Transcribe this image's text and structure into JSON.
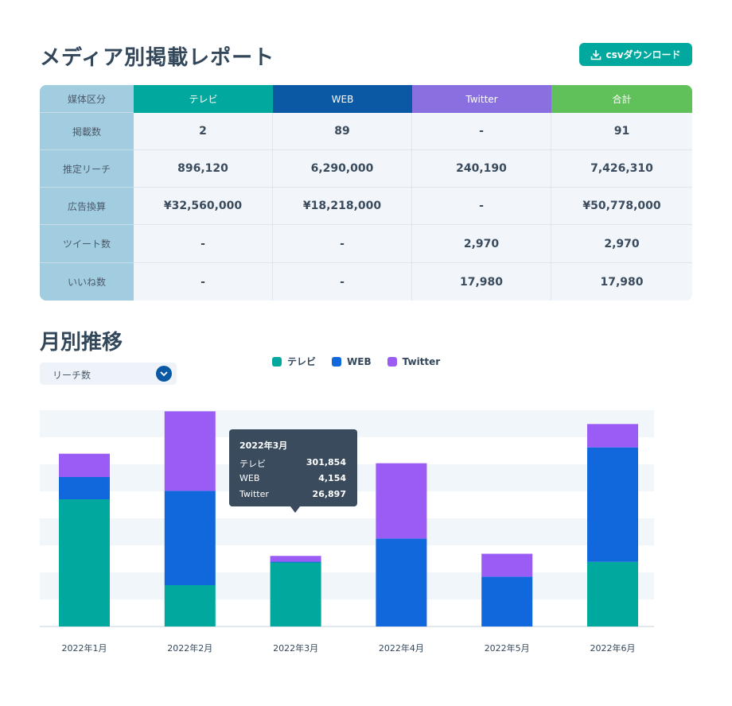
{
  "header": {
    "title": "メディア別掲載レポート",
    "csv_label": "csvダウンロード"
  },
  "table": {
    "corner": "媒体区分",
    "columns": [
      {
        "label": "テレビ",
        "color": "#00a89d"
      },
      {
        "label": "WEB",
        "color": "#0b59a5"
      },
      {
        "label": "Twitter",
        "color": "#8a6fe0"
      },
      {
        "label": "合計",
        "color": "#60c05a"
      }
    ],
    "rows": [
      {
        "label": "掲載数",
        "values": [
          "2",
          "89",
          "-",
          "91"
        ]
      },
      {
        "label": "推定リーチ",
        "values": [
          "896,120",
          "6,290,000",
          "240,190",
          "7,426,310"
        ]
      },
      {
        "label": "広告換算",
        "values": [
          "¥32,560,000",
          "¥18,218,000",
          "-",
          "¥50,778,000"
        ]
      },
      {
        "label": "ツイート数",
        "values": [
          "-",
          "-",
          "2,970",
          "2,970"
        ]
      },
      {
        "label": "いいね数",
        "values": [
          "-",
          "-",
          "17,980",
          "17,980"
        ]
      }
    ]
  },
  "trend": {
    "title": "月別推移",
    "dropdown_value": "リーチ数"
  },
  "legend": [
    {
      "label": "テレビ",
      "color": "#00a89d"
    },
    {
      "label": "WEB",
      "color": "#1167dc"
    },
    {
      "label": "Twitter",
      "color": "#9b5cf5"
    }
  ],
  "tooltip": {
    "title": "2022年3月",
    "rows": [
      {
        "label": "テレビ",
        "value": "301,854"
      },
      {
        "label": "WEB",
        "value": "4,154"
      },
      {
        "label": "Twitter",
        "value": "26,897"
      }
    ]
  },
  "chart_data": {
    "type": "bar",
    "stacked": true,
    "categories": [
      "2022年1月",
      "2022年2月",
      "2022年3月",
      "2022年4月",
      "2022年5月",
      "2022年6月"
    ],
    "series": [
      {
        "name": "テレビ",
        "color": "#00a89d",
        "values": [
          600000,
          195000,
          301854,
          0,
          0,
          305000
        ]
      },
      {
        "name": "WEB",
        "color": "#1167dc",
        "values": [
          105000,
          445000,
          4154,
          415000,
          235000,
          540000
        ]
      },
      {
        "name": "Twitter",
        "color": "#9b5cf5",
        "values": [
          110000,
          375000,
          26897,
          355000,
          108000,
          110000
        ]
      }
    ],
    "ylim": [
      0,
      1020000
    ],
    "grid": true,
    "legend_position": "top"
  }
}
